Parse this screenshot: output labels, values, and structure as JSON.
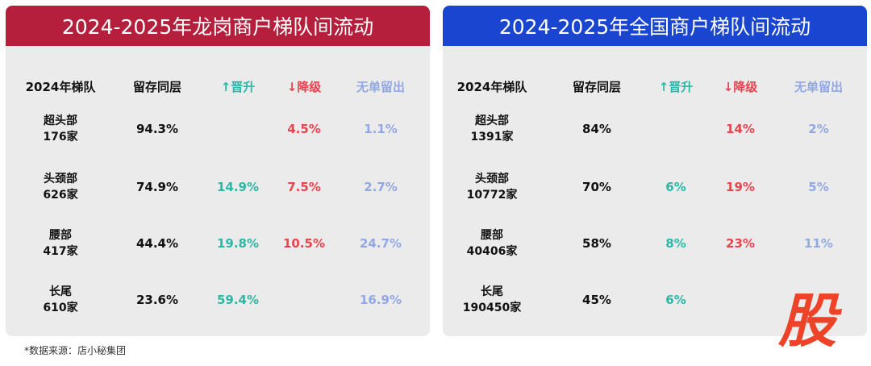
{
  "left": {
    "title": "2024-2025年龙岗商户梯队间流动",
    "headers": [
      "2024年梯队",
      "留存同层",
      "↑晋升",
      "↓降级",
      "无单留出"
    ],
    "rows": [
      {
        "tier": "超头部",
        "count": "176家",
        "stay": "94.3%",
        "up": "",
        "down": "4.5%",
        "none": "1.1%"
      },
      {
        "tier": "头颈部",
        "count": "626家",
        "stay": "74.9%",
        "up": "14.9%",
        "down": "7.5%",
        "none": "2.7%"
      },
      {
        "tier": "腰部",
        "count": "417家",
        "stay": "44.4%",
        "up": "19.8%",
        "down": "10.5%",
        "none": "24.7%"
      },
      {
        "tier": "长尾",
        "count": "610家",
        "stay": "23.6%",
        "up": "59.4%",
        "down": "",
        "none": "16.9%"
      }
    ]
  },
  "right": {
    "title": "2024-2025年全国商户梯队间流动",
    "headers": [
      "2024年梯队",
      "留存同层",
      "↑晋升",
      "↓降级",
      "无单留出"
    ],
    "rows": [
      {
        "tier": "超头部",
        "count": "1391家",
        "stay": "84%",
        "up": "",
        "down": "14%",
        "none": "2%"
      },
      {
        "tier": "头颈部",
        "count": "10772家",
        "stay": "70%",
        "up": "6%",
        "down": "19%",
        "none": "5%"
      },
      {
        "tier": "腰部",
        "count": "40406家",
        "stay": "58%",
        "up": "8%",
        "down": "23%",
        "none": "11%"
      },
      {
        "tier": "长尾",
        "count": "190450家",
        "stay": "45%",
        "up": "6%",
        "down": "",
        "none": ""
      }
    ]
  },
  "footnote": "*数据来源：店小秘集团",
  "watermark": "股",
  "colors": {
    "left_header": "#b51f3b",
    "right_header": "#1a45d0",
    "up": "#2bb8a6",
    "down": "#e8444e",
    "none": "#93a8e3"
  }
}
